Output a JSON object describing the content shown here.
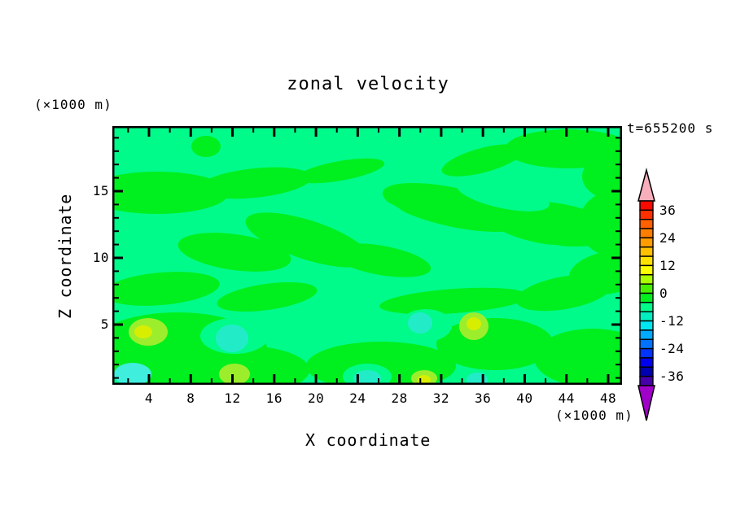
{
  "header": {
    "title": "zonal velocity",
    "time_label": "t=655200 s"
  },
  "axes": {
    "x": {
      "title": "X coordinate",
      "unit": "(×1000 m)",
      "major_ticks": [
        4,
        8,
        12,
        16,
        20,
        24,
        28,
        32,
        36,
        40,
        44,
        48
      ],
      "minor_step": 2,
      "range": [
        0.5,
        49.3
      ]
    },
    "y": {
      "title": "Z coordinate",
      "unit": "(×1000 m)",
      "major_ticks": [
        5,
        10,
        15
      ],
      "minor_step": 1,
      "range": [
        0.5,
        19.9
      ]
    }
  },
  "colorbar": {
    "labels": [
      "36",
      "24",
      "12",
      "0",
      "-12",
      "-24",
      "-36"
    ],
    "label_values": [
      36,
      24,
      12,
      0,
      -12,
      -24,
      -36
    ],
    "level_step": 4,
    "levels_top_to_bottom_max": 40,
    "colors_top_to_bottom": [
      "#fa0a00",
      "#ff3000",
      "#ff6000",
      "#ff7e00",
      "#ff9c00",
      "#ffc000",
      "#ffe200",
      "#fcff00",
      "#aaff00",
      "#46f000",
      "#00ef1e",
      "#00fb8a",
      "#00efc0",
      "#00e6f2",
      "#00aaff",
      "#0072ff",
      "#0034ff",
      "#0000f0",
      "#0000b0",
      "#4600aa"
    ],
    "over_arrow_color": "#f9aebb",
    "under_arrow_color": "#a001c8"
  },
  "chart_data": {
    "type": "heatmap",
    "subtype": "filled_contour",
    "title": "zonal velocity",
    "xlabel": "X coordinate",
    "ylabel": "Z coordinate",
    "x_unit": "(×1000 m)",
    "y_unit": "(×1000 m)",
    "time_annotation": "t=655200 s",
    "x_ticks": [
      4,
      8,
      12,
      16,
      20,
      24,
      28,
      32,
      36,
      40,
      44,
      48
    ],
    "y_ticks": [
      5,
      10,
      15
    ],
    "xlim": [
      0.5,
      49.3
    ],
    "ylim": [
      0.5,
      19.9
    ],
    "contour_interval": 4,
    "value_range_shown": [
      -40,
      40
    ],
    "colorbar_labels": [
      36,
      24,
      12,
      0,
      -12,
      -24,
      -36
    ],
    "legend_position": "right",
    "grid": false,
    "background_band": "-4 to 0",
    "palette": {
      "spring": "#00fb8a",
      "green": "#00ef1e",
      "turquoise": "#22ecc8",
      "cyan": "#40eedd",
      "yellow_green": "#9cee2c",
      "yellow": "#d8ee00"
    },
    "band_of_fill": {
      "spring": "-4..0",
      "green": "0..4",
      "turquoise": "-8..-4",
      "cyan": "-8..-4",
      "yellow_green": "4..8",
      "yellow": "8..12"
    },
    "regions": [
      {
        "fill": "green",
        "cx": 115,
        "cy": 25,
        "rx": 18,
        "ry": 13,
        "rot": 0,
        "x_data": 9.5,
        "z_data": 18.4
      },
      {
        "fill": "green",
        "cx": 560,
        "cy": 28,
        "rx": 78,
        "ry": 24,
        "rot": 0,
        "x_data": 44.2,
        "z_data": 18.2
      },
      {
        "fill": "green",
        "cx": 622,
        "cy": 62,
        "rx": 45,
        "ry": 30,
        "rot": 0,
        "x_data": 49.0,
        "z_data": 16.1
      },
      {
        "fill": "green",
        "cx": 455,
        "cy": 42,
        "rx": 52,
        "ry": 15,
        "rot": -15,
        "x_data": 36.0,
        "z_data": 17.3
      },
      {
        "fill": "green",
        "cx": 55,
        "cy": 82,
        "rx": 88,
        "ry": 26,
        "rot": 0,
        "x_data": 4.8,
        "z_data": 14.9
      },
      {
        "fill": "green",
        "cx": 175,
        "cy": 70,
        "rx": 70,
        "ry": 18,
        "rot": -6,
        "x_data": 14.1,
        "z_data": 15.6
      },
      {
        "fill": "green",
        "cx": 280,
        "cy": 55,
        "rx": 55,
        "ry": 12,
        "rot": -10,
        "x_data": 22.3,
        "z_data": 16.5
      },
      {
        "fill": "green",
        "cx": 420,
        "cy": 100,
        "rx": 90,
        "ry": 24,
        "rot": 12,
        "x_data": 33.3,
        "z_data": 13.8
      },
      {
        "fill": "green",
        "cx": 540,
        "cy": 120,
        "rx": 80,
        "ry": 26,
        "rot": 8,
        "x_data": 42.6,
        "z_data": 12.6
      },
      {
        "fill": "green",
        "cx": 615,
        "cy": 120,
        "rx": 42,
        "ry": 40,
        "rot": 0,
        "x_data": 48.5,
        "z_data": 12.6
      },
      {
        "fill": "green",
        "cx": 240,
        "cy": 140,
        "rx": 80,
        "ry": 24,
        "rot": 18,
        "x_data": 19.2,
        "z_data": 11.3
      },
      {
        "fill": "green",
        "cx": 150,
        "cy": 155,
        "rx": 70,
        "ry": 22,
        "rot": 8,
        "x_data": 12.2,
        "z_data": 10.4
      },
      {
        "fill": "green",
        "cx": 330,
        "cy": 165,
        "rx": 62,
        "ry": 18,
        "rot": 10,
        "x_data": 26.2,
        "z_data": 9.8
      },
      {
        "fill": "green",
        "cx": 60,
        "cy": 200,
        "rx": 72,
        "ry": 20,
        "rot": -5,
        "x_data": 5.2,
        "z_data": 7.7
      },
      {
        "fill": "green",
        "cx": 190,
        "cy": 210,
        "rx": 62,
        "ry": 16,
        "rot": -8,
        "x_data": 15.3,
        "z_data": 7.1
      },
      {
        "fill": "green",
        "cx": 420,
        "cy": 215,
        "rx": 92,
        "ry": 15,
        "rot": -4,
        "x_data": 33.3,
        "z_data": 6.8
      },
      {
        "fill": "green",
        "cx": 555,
        "cy": 205,
        "rx": 60,
        "ry": 20,
        "rot": -10,
        "x_data": 43.8,
        "z_data": 7.4
      },
      {
        "fill": "green",
        "cx": 80,
        "cy": 275,
        "rx": 110,
        "ry": 46,
        "rot": 0,
        "x_data": 6.7,
        "z_data": 3.1
      },
      {
        "fill": "green",
        "cx": 160,
        "cy": 300,
        "rx": 82,
        "ry": 30,
        "rot": 0,
        "x_data": 13.0,
        "z_data": 1.6
      },
      {
        "fill": "green",
        "cx": 330,
        "cy": 295,
        "rx": 92,
        "ry": 30,
        "rot": 0,
        "x_data": 26.2,
        "z_data": 1.9
      },
      {
        "fill": "green",
        "cx": 470,
        "cy": 268,
        "rx": 72,
        "ry": 32,
        "rot": 0,
        "x_data": 37.2,
        "z_data": 3.5
      },
      {
        "fill": "green",
        "cx": 590,
        "cy": 285,
        "rx": 72,
        "ry": 36,
        "rot": 0,
        "x_data": 46.5,
        "z_data": 2.5
      },
      {
        "fill": "green",
        "cx": 610,
        "cy": 180,
        "rx": 50,
        "ry": 26,
        "rot": -10,
        "x_data": 48.1,
        "z_data": 8.9
      },
      {
        "fill": "spring",
        "cx": 480,
        "cy": 85,
        "rx": 58,
        "ry": 16,
        "rot": 12,
        "x_data": 37.9,
        "z_data": 14.7
      },
      {
        "fill": "spring",
        "cx": 300,
        "cy": 95,
        "rx": 62,
        "ry": 14,
        "rot": 15,
        "x_data": 23.9,
        "z_data": 14.1
      },
      {
        "fill": "spring",
        "cx": 520,
        "cy": 160,
        "rx": 46,
        "ry": 14,
        "rot": -5,
        "x_data": 41.0,
        "z_data": 10.1
      },
      {
        "fill": "spring",
        "cx": 150,
        "cy": 258,
        "rx": 42,
        "ry": 22,
        "rot": 0,
        "x_data": 12.2,
        "z_data": 4.1
      },
      {
        "fill": "spring",
        "cx": 385,
        "cy": 245,
        "rx": 32,
        "ry": 20,
        "rot": 0,
        "x_data": 30.5,
        "z_data": 4.9
      },
      {
        "fill": "spring",
        "cx": 313,
        "cy": 308,
        "rx": 30,
        "ry": 16,
        "rot": 0,
        "x_data": 24.9,
        "z_data": 1.1
      },
      {
        "fill": "turquoise",
        "cx": 147,
        "cy": 261,
        "rx": 20,
        "ry": 17,
        "rot": 0,
        "x_data": 12.0,
        "z_data": 4.0
      },
      {
        "fill": "turquoise",
        "cx": 378,
        "cy": 242,
        "rx": 15,
        "ry": 13,
        "rot": 0,
        "x_data": 30.0,
        "z_data": 5.1
      },
      {
        "fill": "turquoise",
        "cx": 313,
        "cy": 310,
        "rx": 17,
        "ry": 10,
        "rot": 0,
        "x_data": 24.9,
        "z_data": 1.0
      },
      {
        "fill": "turquoise",
        "cx": 448,
        "cy": 312,
        "rx": 13,
        "ry": 9,
        "rot": 0,
        "x_data": 35.4,
        "z_data": 0.9
      },
      {
        "fill": "cyan",
        "cx": 25,
        "cy": 305,
        "rx": 23,
        "ry": 14,
        "rot": 0,
        "x_data": 2.4,
        "z_data": 1.3
      },
      {
        "fill": "yellow_green",
        "cx": 44,
        "cy": 253,
        "rx": 24,
        "ry": 17,
        "rot": 0,
        "x_data": 3.9,
        "z_data": 4.5
      },
      {
        "fill": "yellow_green",
        "cx": 444,
        "cy": 246,
        "rx": 18,
        "ry": 17,
        "rot": 0,
        "x_data": 35.1,
        "z_data": 4.9
      },
      {
        "fill": "yellow_green",
        "cx": 150,
        "cy": 305,
        "rx": 19,
        "ry": 13,
        "rot": 0,
        "x_data": 12.2,
        "z_data": 1.3
      },
      {
        "fill": "yellow_green",
        "cx": 383,
        "cy": 310,
        "rx": 16,
        "ry": 10,
        "rot": 0,
        "x_data": 30.4,
        "z_data": 1.0
      },
      {
        "fill": "yellow",
        "cx": 38,
        "cy": 253,
        "rx": 11,
        "ry": 8,
        "rot": 0,
        "x_data": 3.5,
        "z_data": 4.5
      },
      {
        "fill": "yellow",
        "cx": 444,
        "cy": 243,
        "rx": 9,
        "ry": 8,
        "rot": 0,
        "x_data": 35.1,
        "z_data": 5.1
      },
      {
        "fill": "yellow",
        "cx": 383,
        "cy": 312,
        "rx": 8,
        "ry": 6,
        "rot": 0,
        "x_data": 30.4,
        "z_data": 0.9
      }
    ]
  }
}
